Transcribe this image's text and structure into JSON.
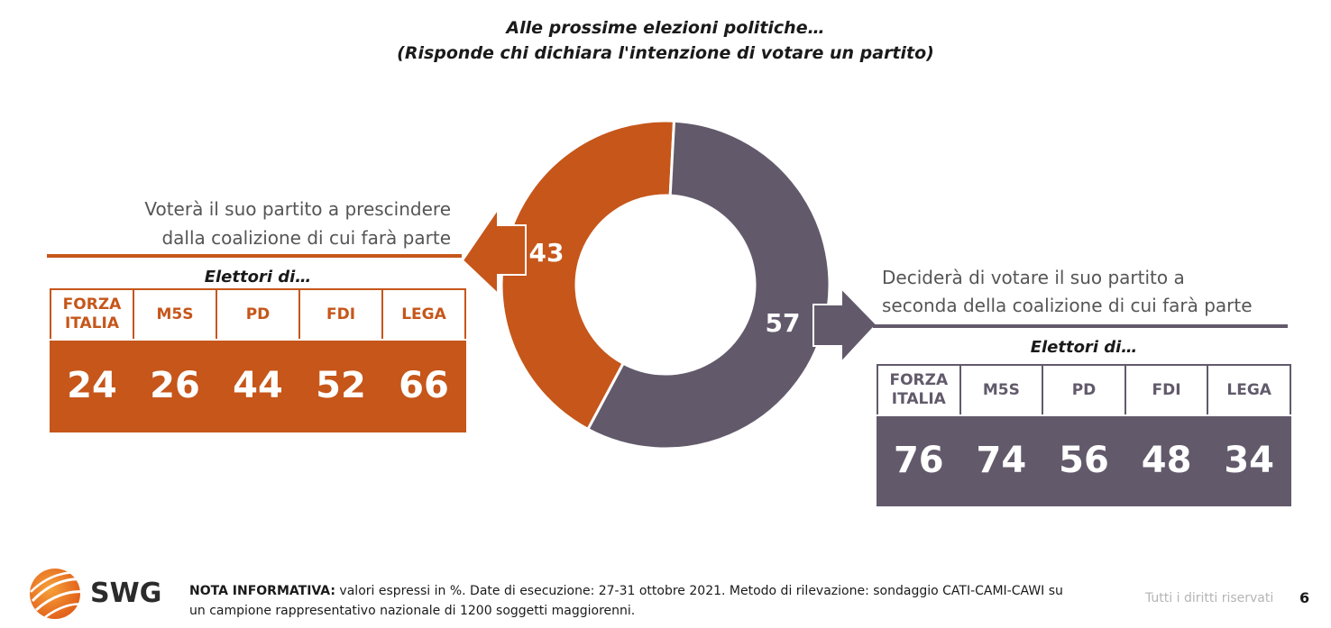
{
  "title": {
    "line1": "Alle prossime elezioni politiche…",
    "line2": "(Risponde chi dichiara l'intenzione di votare un partito)"
  },
  "left": {
    "label_line1": "Voterà il suo partito a prescindere",
    "label_line2": "dalla coalizione di cui farà parte",
    "subtitle": "Elettori di…"
  },
  "right": {
    "label_line1": "Deciderà di votare il suo partito a",
    "label_line2": "seconda della coalizione di cui farà parte",
    "subtitle": "Elettori di…"
  },
  "colors": {
    "orange": "#c6561a",
    "purple": "#625a6b"
  },
  "chart_data": [
    {
      "type": "pie",
      "categories": [
        "Voterà il suo partito a prescindere dalla coalizione di cui farà parte",
        "Deciderà di votare il suo partito a seconda della coalizione di cui farà parte"
      ],
      "values": [
        43,
        57
      ],
      "labels": [
        "43",
        "57"
      ],
      "colors": [
        "#c6561a",
        "#625a6b"
      ],
      "style": "donut"
    },
    {
      "type": "table",
      "title": "Elettori di…",
      "headers": [
        [
          "FORZA",
          "ITALIA"
        ],
        [
          "M5S"
        ],
        [
          "PD"
        ],
        [
          "FDI"
        ],
        [
          "LEGA"
        ]
      ],
      "values": [
        24,
        26,
        44,
        52,
        66
      ],
      "labels": [
        "24",
        "26",
        "44",
        "52",
        "66"
      ]
    },
    {
      "type": "table",
      "title": "Elettori di…",
      "headers": [
        [
          "FORZA",
          "ITALIA"
        ],
        [
          "M5S"
        ],
        [
          "PD"
        ],
        [
          "FDI"
        ],
        [
          "LEGA"
        ]
      ],
      "values": [
        76,
        74,
        56,
        48,
        34
      ],
      "labels": [
        "76",
        "74",
        "56",
        "48",
        "34"
      ]
    }
  ],
  "footer": {
    "logo_text": "SWG",
    "note_label": "NOTA INFORMATIVA:",
    "note_text": " valori espressi in %. Date di esecuzione: 27-31 ottobre 2021. Metodo di rilevazione: sondaggio CATI-CAMI-CAWI su un campione rappresentativo nazionale di 1200 soggetti maggiorenni.",
    "rights": "Tutti i diritti riservati",
    "page": "6"
  }
}
